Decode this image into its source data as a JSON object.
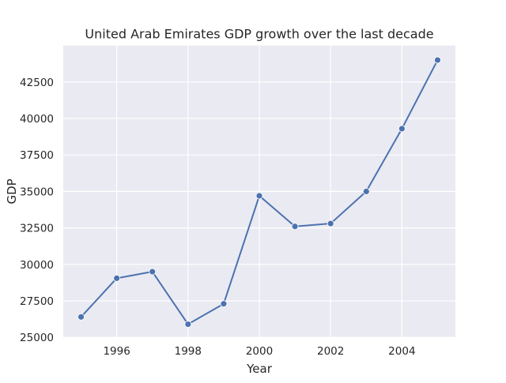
{
  "chart_data": {
    "type": "line",
    "title": "United Arab Emirates GDP growth over the last decade",
    "xlabel": "Year",
    "ylabel": "GDP",
    "x": [
      1995,
      1996,
      1997,
      1998,
      1999,
      2000,
      2001,
      2002,
      2003,
      2004,
      2005
    ],
    "series": [
      {
        "values": [
          26400,
          29050,
          29500,
          25900,
          27300,
          34700,
          32600,
          32800,
          35000,
          39300,
          44000
        ]
      }
    ],
    "xlim": [
      1994.5,
      2005.5
    ],
    "ylim": [
      25000,
      45000
    ],
    "x_ticks": [
      "1996",
      "1998",
      "2000",
      "2002",
      "2004"
    ],
    "y_ticks": [
      "25000",
      "27500",
      "30000",
      "32500",
      "35000",
      "37500",
      "40000",
      "42500"
    ],
    "grid": true,
    "marker": "circle",
    "colors": {
      "line": "#4c72b0",
      "background": "#eaeaf2",
      "grid": "#ffffff"
    }
  }
}
